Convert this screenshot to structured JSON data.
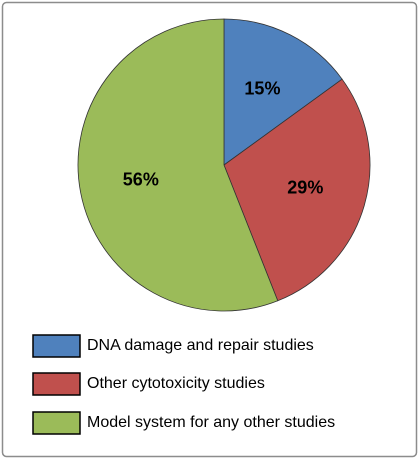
{
  "chart_data": {
    "type": "pie",
    "labels": [
      "DNA damage and repair studies",
      "Other cytotoxicity studies",
      "Model system for any other studies"
    ],
    "values": [
      15,
      29,
      56
    ],
    "value_labels": [
      "15%",
      "29%",
      "56%"
    ],
    "colors": [
      "#4f81bd",
      "#c0504d",
      "#9bbb59"
    ]
  }
}
